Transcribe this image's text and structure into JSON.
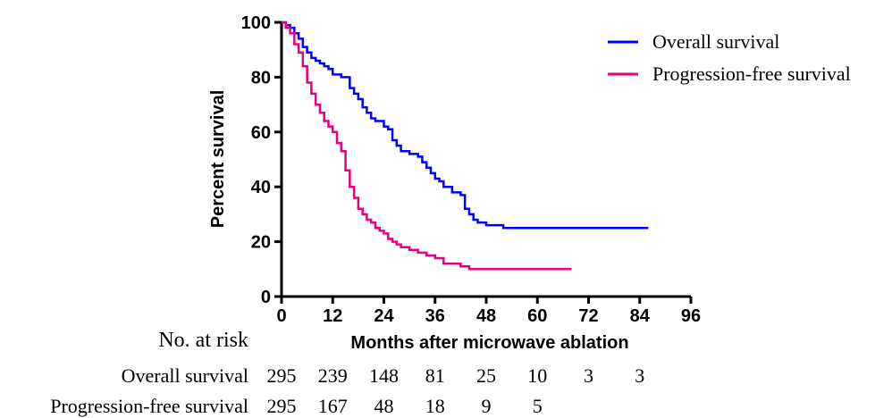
{
  "chart_data": {
    "type": "line",
    "step": true,
    "xlabel": "Months after microwave ablation",
    "ylabel": "Percent survival",
    "xlim": [
      0,
      96
    ],
    "ylim": [
      0,
      100
    ],
    "x_ticks": [
      0,
      12,
      24,
      36,
      48,
      60,
      72,
      84,
      96
    ],
    "y_ticks": [
      0,
      20,
      40,
      60,
      80,
      100
    ],
    "grid": false,
    "legend_position": "top-right",
    "series": [
      {
        "name": "Overall survival",
        "color": "#0000ff",
        "x": [
          0,
          1,
          2,
          3,
          4,
          5,
          6,
          7,
          8,
          9,
          10,
          11,
          12,
          14,
          16,
          17,
          18,
          19,
          20,
          21,
          22,
          24,
          25,
          26,
          27,
          28,
          29,
          30,
          32,
          33,
          34,
          35,
          36,
          37,
          38,
          40,
          42,
          43,
          44,
          45,
          46,
          48,
          52,
          86
        ],
        "y": [
          100,
          99,
          98,
          96,
          94,
          91,
          89,
          87,
          86,
          85,
          84,
          83,
          81,
          80,
          76,
          74,
          72,
          69,
          67,
          65,
          64,
          62,
          61,
          57,
          55,
          53,
          53,
          52,
          51,
          49,
          47,
          45,
          43,
          42,
          40,
          38,
          37,
          32,
          30,
          28,
          27,
          26,
          25,
          25
        ]
      },
      {
        "name": "Progression-free survival",
        "color": "#e6007e",
        "x": [
          0,
          1,
          2,
          3,
          4,
          5,
          6,
          7,
          8,
          9,
          10,
          11,
          12,
          13,
          14,
          15,
          16,
          17,
          18,
          19,
          20,
          21,
          22,
          23,
          24,
          25,
          26,
          27,
          28,
          30,
          32,
          34,
          36,
          38,
          40,
          42,
          44,
          46,
          48,
          68
        ],
        "y": [
          100,
          98,
          96,
          92,
          89,
          84,
          78,
          74,
          70,
          67,
          64,
          62,
          60,
          56,
          53,
          46,
          40,
          36,
          32,
          30,
          28,
          27,
          25,
          24,
          23,
          21,
          20,
          19,
          18,
          17,
          16,
          15,
          14,
          12,
          12,
          11,
          10,
          10,
          10,
          10
        ]
      }
    ]
  },
  "risk_table": {
    "header": "No. at risk",
    "rows": [
      {
        "label": "Overall survival",
        "counts": [
          "295",
          "239",
          "148",
          "81",
          "25",
          "10",
          "3",
          "3"
        ]
      },
      {
        "label": "Progression-free survival",
        "counts": [
          "295",
          "167",
          "48",
          "18",
          "9",
          "5"
        ]
      }
    ]
  }
}
